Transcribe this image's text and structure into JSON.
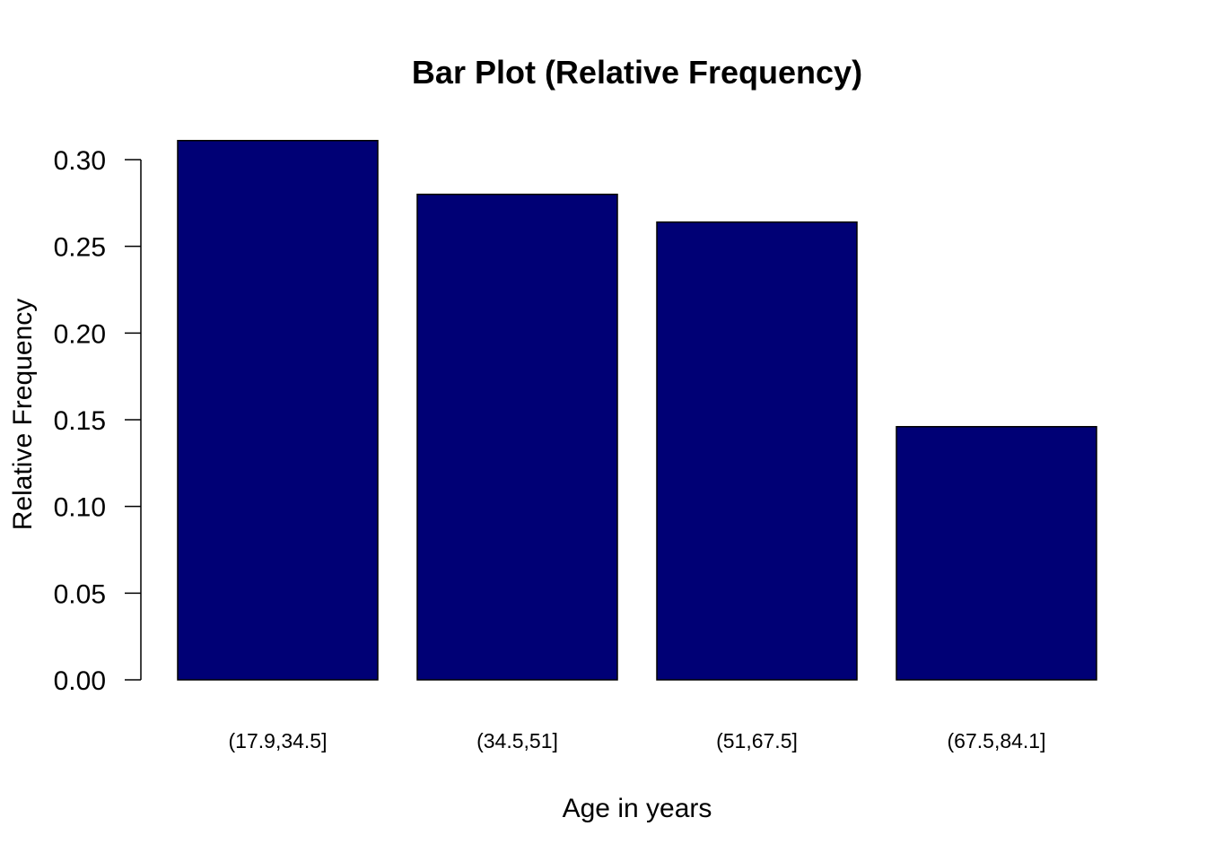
{
  "chart_data": {
    "type": "bar",
    "title": "Bar Plot (Relative Frequency)",
    "xlabel": "Age in years",
    "ylabel": "Relative Frequency",
    "categories": [
      "(17.9,34.5]",
      "(34.5,51]",
      "(51,67.5]",
      "(67.5,84.1]"
    ],
    "values": [
      0.311,
      0.28,
      0.264,
      0.146
    ],
    "ylim": [
      0,
      0.31
    ],
    "yticks": [
      0.0,
      0.05,
      0.1,
      0.15,
      0.2,
      0.25,
      0.3
    ],
    "ytick_labels": [
      "0.00",
      "0.05",
      "0.10",
      "0.15",
      "0.20",
      "0.25",
      "0.30"
    ],
    "grid": false,
    "bar_color": "#000075",
    "bar_border_color": "#000000"
  }
}
